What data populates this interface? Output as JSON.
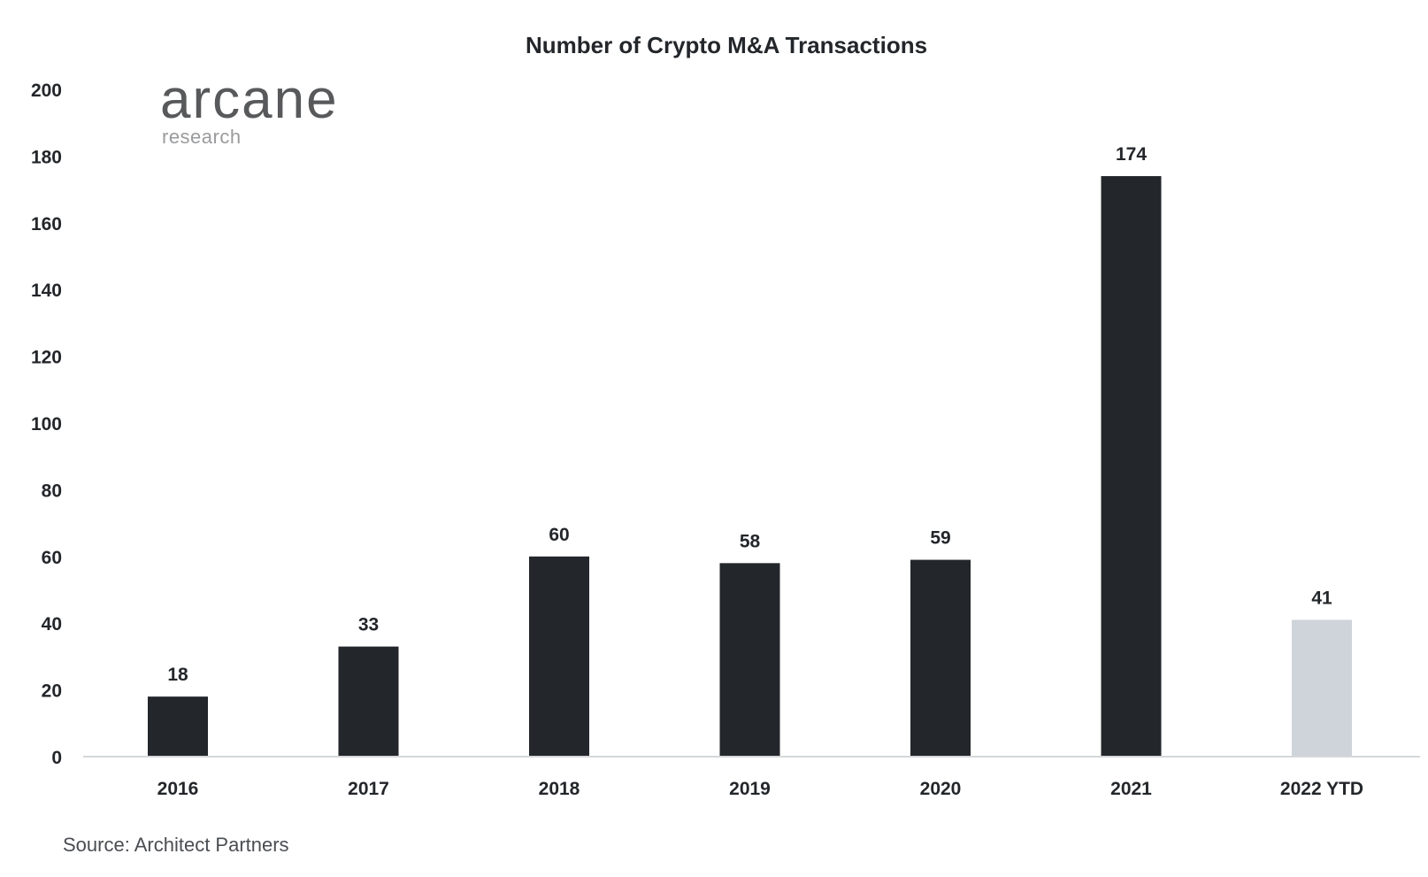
{
  "logo": {
    "main": "arcane",
    "sub": "research"
  },
  "source": "Source: Architect Partners",
  "colors": {
    "bar": "#23262a",
    "bar_highlight": "#cfd4da",
    "axis": "#d5d7da",
    "text": "#23262a"
  },
  "chart_data": {
    "type": "bar",
    "title": "Number of Crypto M&A Transactions",
    "xlabel": "",
    "ylabel": "",
    "categories": [
      "2016",
      "2017",
      "2018",
      "2019",
      "2020",
      "2021",
      "2022 YTD"
    ],
    "values": [
      18,
      33,
      60,
      58,
      59,
      174,
      41
    ],
    "data_labels": [
      "18",
      "33",
      "60",
      "58",
      "59",
      "174",
      "41"
    ],
    "highlight_index": 6,
    "ylim": [
      0,
      200
    ],
    "yticks": [
      "0",
      "20",
      "40",
      "60",
      "80",
      "100",
      "120",
      "140",
      "160",
      "180",
      "200"
    ],
    "grid": false,
    "legend": "none"
  }
}
